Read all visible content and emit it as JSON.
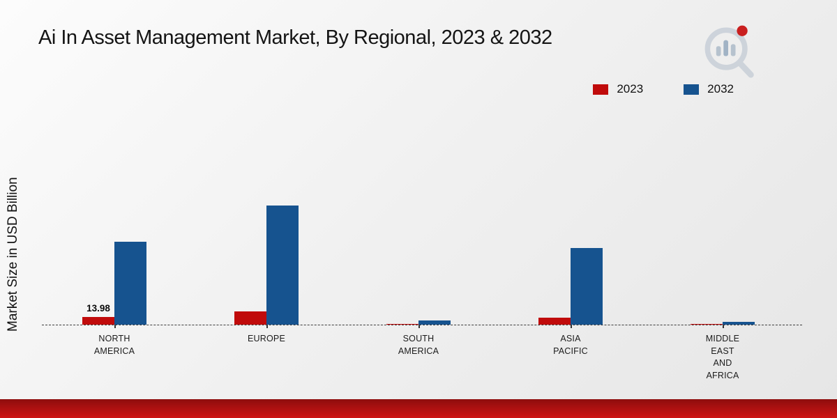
{
  "title": "Ai In Asset Management Market, By Regional, 2023 & 2032",
  "y_axis_label": "Market Size in USD Billion",
  "legend": {
    "items": [
      {
        "label": "2023",
        "color": "#c00b0b"
      },
      {
        "label": "2032",
        "color": "#16538f"
      }
    ]
  },
  "chart_data": {
    "type": "bar",
    "title": "Ai In Asset Management Market, By Regional, 2023 & 2032",
    "xlabel": "",
    "ylabel": "Market Size in USD Billion",
    "categories": [
      "NORTH AMERICA",
      "EUROPE",
      "SOUTH AMERICA",
      "ASIA PACIFIC",
      "MIDDLE EAST AND AFRICA"
    ],
    "tick_labels": [
      "NORTH\nAMERICA",
      "EUROPE",
      "SOUTH\nAMERICA",
      "ASIA\nPACIFIC",
      "MIDDLE\nEAST\nAND\nAFRICA"
    ],
    "series": [
      {
        "name": "2023",
        "color": "#c00b0b",
        "values": [
          13.98,
          24,
          1.5,
          12,
          1
        ]
      },
      {
        "name": "2032",
        "color": "#16538f",
        "values": [
          150,
          215,
          8,
          138,
          5
        ]
      }
    ],
    "bar_labels": [
      {
        "series": 0,
        "category": 0,
        "text": "13.98"
      }
    ],
    "ylim": [
      0,
      460
    ],
    "grid": false,
    "baseline_style": "dashed",
    "legend_position": "top-right",
    "units": "USD Billion"
  }
}
